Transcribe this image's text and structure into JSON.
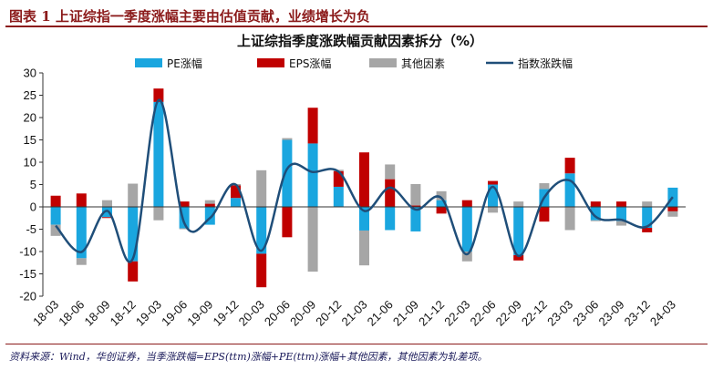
{
  "header": {
    "title": "图表 1   上证综指一季度涨幅主要由估值贡献，业绩增长为负"
  },
  "footer": {
    "note": "资料来源：Wind，华创证券，当季涨跌幅=EPS(ttm)涨幅+PE(ttm)涨幅+其他因素，其他因素为轧差项。"
  },
  "colors": {
    "pe": "#1aa6df",
    "eps": "#c00000",
    "other": "#a6a6a6",
    "index": "#1f4e79",
    "header": "#8b1a1a"
  },
  "chart_data": {
    "type": "bar",
    "title": "上证综指季度涨跌幅贡献因素拆分（%）",
    "stacked": true,
    "grid": false,
    "legend_position": "top",
    "ylim": [
      -20,
      30
    ],
    "yticks": [
      -20,
      -15,
      -10,
      -5,
      0,
      5,
      10,
      15,
      20,
      25,
      30
    ],
    "categories": [
      "18-03",
      "18-06",
      "18-09",
      "18-12",
      "19-03",
      "19-06",
      "19-09",
      "19-12",
      "20-03",
      "20-06",
      "20-09",
      "20-12",
      "21-03",
      "21-06",
      "21-09",
      "21-12",
      "22-03",
      "22-06",
      "22-09",
      "22-12",
      "23-03",
      "23-06",
      "23-09",
      "23-12",
      "24-03"
    ],
    "series": [
      {
        "name": "PE涨幅",
        "type": "bar",
        "color": "#1aa6df",
        "values": [
          -4.0,
          -11.5,
          -2.3,
          -12.2,
          23.5,
          -4.8,
          -4.0,
          2.0,
          -10.5,
          15.0,
          14.2,
          4.5,
          -5.3,
          -5.2,
          -5.5,
          1.5,
          -10.0,
          5.0,
          -10.8,
          4.0,
          7.5,
          -3.0,
          -3.2,
          -4.7,
          4.3
        ]
      },
      {
        "name": "EPS涨幅",
        "type": "bar",
        "color": "#c00000",
        "values": [
          2.5,
          3.0,
          -0.2,
          -4.5,
          3.0,
          1.2,
          0.7,
          2.8,
          -7.5,
          -6.8,
          8.0,
          3.5,
          12.2,
          6.2,
          0.3,
          -1.5,
          1.5,
          0.8,
          -1.2,
          -3.3,
          3.5,
          1.2,
          1.2,
          -1.0,
          -1.0
        ]
      },
      {
        "name": "其他因素",
        "type": "bar",
        "color": "#a6a6a6",
        "values": [
          -2.5,
          -1.5,
          1.5,
          5.2,
          -3.0,
          -0.2,
          0.8,
          0.3,
          8.2,
          0.4,
          -14.5,
          0.3,
          -7.8,
          3.3,
          4.8,
          2.0,
          -2.2,
          -1.3,
          1.2,
          1.3,
          -5.2,
          -0.2,
          -1.0,
          1.2,
          -1.2
        ]
      },
      {
        "name": "指数涨跌幅",
        "type": "line",
        "color": "#1f4e79",
        "values": [
          -4.2,
          -10.1,
          -0.9,
          -11.6,
          23.9,
          -3.6,
          -2.5,
          5.0,
          -9.8,
          8.5,
          7.8,
          7.9,
          -0.9,
          4.3,
          -0.6,
          2.0,
          -10.6,
          4.5,
          -11.0,
          2.1,
          5.9,
          -2.2,
          -2.9,
          -4.4,
          2.2
        ]
      }
    ]
  }
}
